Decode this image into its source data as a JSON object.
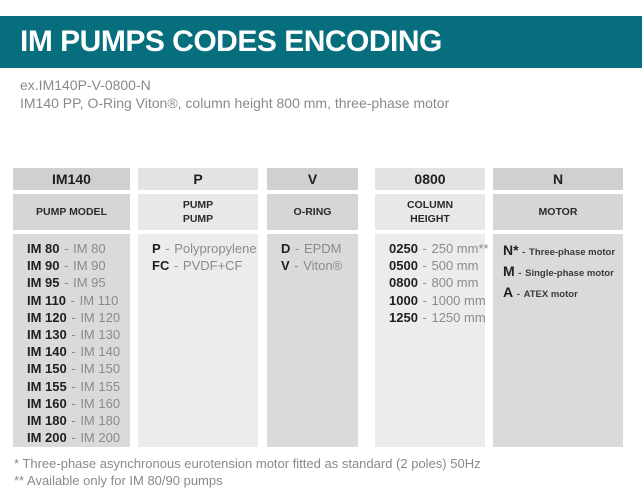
{
  "header": {
    "title": "IM PUMPS CODES ENCODING"
  },
  "example": {
    "code_line": "ex.IM140P-V-0800-N",
    "description_line": "IM140 PP, O-Ring Viton®, column height 800 mm, three-phase motor"
  },
  "table": {
    "separator": "-",
    "columns": [
      {
        "code": "IM140",
        "label": "PUMP MODEL",
        "shade": "dark",
        "variant": "default",
        "items": [
          {
            "code": "IM 80",
            "desc": "IM 80"
          },
          {
            "code": "IM 90",
            "desc": "IM 90"
          },
          {
            "code": "IM 95",
            "desc": "IM 95"
          },
          {
            "code": "IM 110",
            "desc": "IM 110"
          },
          {
            "code": "IM 120",
            "desc": "IM 120"
          },
          {
            "code": "IM 130",
            "desc": "IM 130"
          },
          {
            "code": "IM 140",
            "desc": "IM 140"
          },
          {
            "code": "IM 150",
            "desc": "IM 150"
          },
          {
            "code": "IM 155",
            "desc": "IM 155"
          },
          {
            "code": "IM 160",
            "desc": "IM 160"
          },
          {
            "code": "IM 180",
            "desc": "IM 180"
          },
          {
            "code": "IM 200",
            "desc": "IM 200"
          }
        ]
      },
      {
        "code": "P",
        "label": "PUMP\nPUMP",
        "shade": "light",
        "variant": "default",
        "items": [
          {
            "code": "P",
            "desc": "Polypropylene"
          },
          {
            "code": "FC",
            "desc": "PVDF+CF"
          }
        ]
      },
      {
        "code": "V",
        "label": "O-RING",
        "shade": "dark",
        "variant": "default",
        "items": [
          {
            "code": "D",
            "desc": "EPDM"
          },
          {
            "code": "V",
            "desc": "Viton®"
          }
        ]
      },
      {
        "code": "0800",
        "label": "COLUMN\nHEIGHT",
        "shade": "light",
        "variant": "default",
        "items": [
          {
            "code": "0250",
            "desc": "250 mm**"
          },
          {
            "code": "0500",
            "desc": "500 mm"
          },
          {
            "code": "0800",
            "desc": "800 mm"
          },
          {
            "code": "1000",
            "desc": "1000 mm"
          },
          {
            "code": "1250",
            "desc": "1250 mm"
          }
        ]
      },
      {
        "code": "N",
        "label": "MOTOR",
        "shade": "dark",
        "variant": "motor",
        "items": [
          {
            "code": "N*",
            "desc": "Three-phase motor"
          },
          {
            "code": "M",
            "desc": "Single-phase motor"
          },
          {
            "code": "A",
            "desc": "ATEX motor"
          }
        ]
      }
    ]
  },
  "footnotes": [
    "* Three-phase asynchronous eurotension motor fitted as standard (2 poles) 50Hz",
    "** Available only for IM 80/90 pumps"
  ],
  "colors": {
    "accent_teal": "#076e7e",
    "cell_dark": "#d6d6d6",
    "cell_light": "#e8e8e8",
    "text_code": "#1f1f1f",
    "text_muted": "#8a8a8a"
  }
}
